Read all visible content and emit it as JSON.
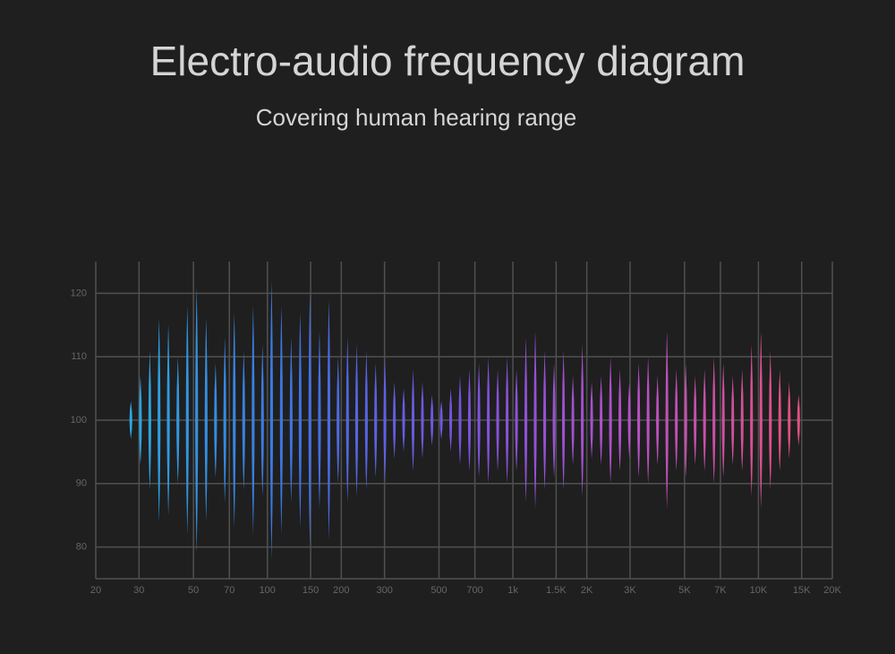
{
  "chart_data": {
    "type": "spikes",
    "title": "Electro-audio frequency diagram",
    "subtitle": "Covering human hearing range",
    "log_x": true,
    "grid": true,
    "center": 100,
    "colors": [
      "#2aa9e0",
      "#3d72e3",
      "#7a52e0",
      "#b650c8",
      "#e4507f"
    ],
    "xlim": [
      20,
      20000
    ],
    "ylim": [
      75,
      125
    ],
    "xticks": [
      20,
      30,
      50,
      70,
      100,
      150,
      200,
      300,
      500,
      700,
      {
        "value": 1000,
        "label": "1k"
      },
      {
        "value": 1500,
        "label": "1.5K"
      },
      {
        "value": 2000,
        "label": "2K"
      },
      {
        "value": 3000,
        "label": "3K"
      },
      {
        "value": 5000,
        "label": "5K"
      },
      {
        "value": 7000,
        "label": "7K"
      },
      {
        "value": 10000,
        "label": "10K"
      },
      {
        "value": 15000,
        "label": "15K"
      },
      {
        "value": 20000,
        "label": "20K"
      }
    ],
    "yticks": [
      80,
      90,
      100,
      110,
      120
    ],
    "x": [
      27.8,
      30.4,
      33.2,
      36.2,
      39.5,
      43.2,
      47.2,
      51.5,
      56.3,
      61.5,
      67.1,
      73.3,
      80.1,
      87.5,
      95.5,
      104,
      114,
      125,
      136,
      149,
      163,
      178,
      194,
      212,
      231,
      253,
      276,
      301,
      329,
      359,
      392,
      428,
      468,
      511,
      558,
      609,
      665,
      727,
      794,
      867,
      947,
      1034,
      1129,
      1233,
      1347,
      1471,
      1607,
      1755,
      1917,
      2093,
      2286,
      2497,
      2727,
      2979,
      3253,
      3553,
      3881,
      4239,
      4630,
      5056,
      5522,
      6032,
      6588,
      7195,
      7858,
      8583,
      9374,
      10239,
      11183,
      12214,
      13340,
      14570
    ],
    "values": [
      103,
      107,
      111,
      116,
      115,
      110,
      118,
      121,
      116,
      109,
      113,
      117,
      111,
      118,
      112,
      122,
      118,
      113,
      117,
      120,
      114,
      119,
      110,
      113,
      112,
      111,
      109,
      110,
      106,
      105,
      108,
      106,
      104,
      103,
      105,
      107,
      108,
      109,
      110,
      108,
      110,
      108,
      113,
      114,
      111,
      109,
      111,
      107,
      112,
      106,
      107,
      110,
      108,
      106,
      109,
      110,
      107,
      114,
      108,
      109,
      107,
      108,
      110,
      109,
      107,
      108,
      112,
      114,
      111,
      108,
      106,
      104
    ]
  }
}
